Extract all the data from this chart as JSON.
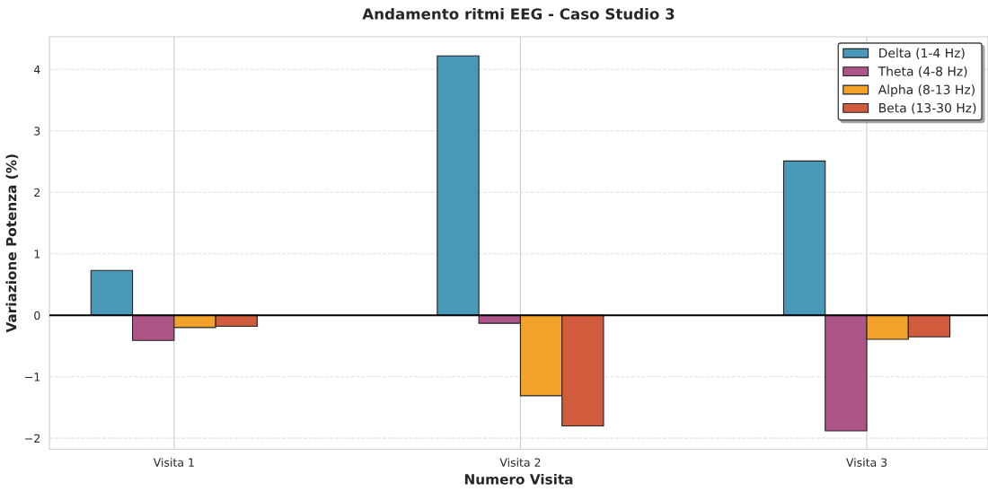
{
  "chart_data": {
    "type": "bar",
    "title": "Andamento ritmi EEG - Caso Studio 3",
    "xlabel": "Numero Visita",
    "ylabel": "Variazione Potenza (%)",
    "categories": [
      "Visita 1",
      "Visita 2",
      "Visita 3"
    ],
    "series": [
      {
        "name": "Delta (1-4 Hz)",
        "color": "#4a98b8",
        "values": [
          0.73,
          4.22,
          2.51
        ]
      },
      {
        "name": "Theta (4-8 Hz)",
        "color": "#ad5587",
        "values": [
          -0.41,
          -0.13,
          -1.88
        ]
      },
      {
        "name": "Alpha (8-13 Hz)",
        "color": "#f2a12a",
        "values": [
          -0.2,
          -1.31,
          -0.39
        ]
      },
      {
        "name": "Beta (13-30 Hz)",
        "color": "#d05c3d",
        "values": [
          -0.18,
          -1.8,
          -0.35
        ]
      }
    ],
    "ylim": [
      -2.18,
      4.53
    ],
    "yticks": [
      {
        "value": -2,
        "label": "−2"
      },
      {
        "value": -1,
        "label": "−1"
      },
      0,
      1,
      2,
      3,
      4
    ],
    "ref_lines": [
      {
        "axis": "y",
        "value": 0,
        "color": "#000000",
        "line_style": "solid"
      }
    ],
    "grid": true,
    "legend": "top right"
  }
}
